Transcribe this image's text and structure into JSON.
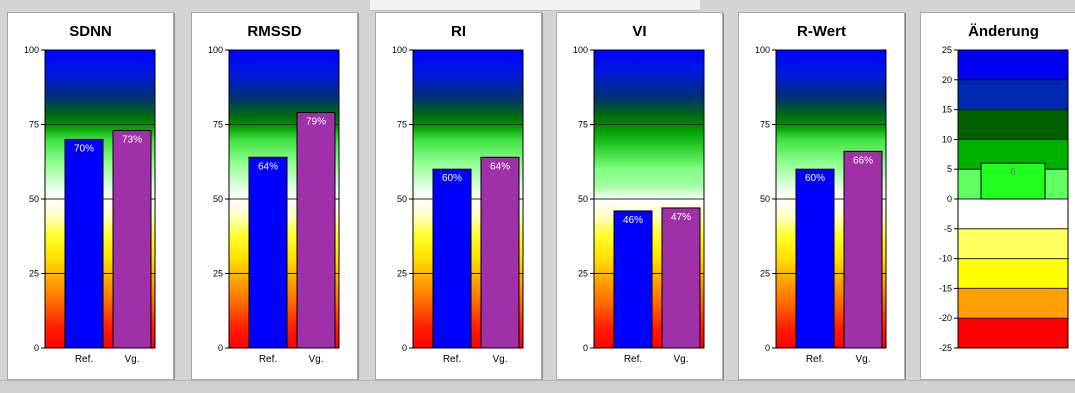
{
  "colors": {
    "ref_bar": "#0000ff",
    "vg_bar": "#a030a8",
    "change_bar": "#20ff20"
  },
  "chart_data": [
    {
      "type": "bar",
      "title": "SDNN",
      "categories": [
        "Ref.",
        "Vg."
      ],
      "values": [
        70,
        73
      ],
      "value_labels": [
        "70%",
        "73%"
      ],
      "ylim": [
        0,
        100
      ],
      "yticks": [
        0,
        25,
        50,
        75,
        100
      ],
      "background": "gradient"
    },
    {
      "type": "bar",
      "title": "RMSSD",
      "categories": [
        "Ref.",
        "Vg."
      ],
      "values": [
        64,
        79
      ],
      "value_labels": [
        "64%",
        "79%"
      ],
      "ylim": [
        0,
        100
      ],
      "yticks": [
        0,
        25,
        50,
        75,
        100
      ],
      "background": "gradient"
    },
    {
      "type": "bar",
      "title": "RI",
      "categories": [
        "Ref.",
        "Vg."
      ],
      "values": [
        60,
        64
      ],
      "value_labels": [
        "60%",
        "64%"
      ],
      "ylim": [
        0,
        100
      ],
      "yticks": [
        0,
        25,
        50,
        75,
        100
      ],
      "background": "gradient"
    },
    {
      "type": "bar",
      "title": "VI",
      "categories": [
        "Ref.",
        "Vg."
      ],
      "values": [
        46,
        47
      ],
      "value_labels": [
        "46%",
        "47%"
      ],
      "ylim": [
        0,
        100
      ],
      "yticks": [
        0,
        25,
        50,
        75,
        100
      ],
      "background": "gradient-vi"
    },
    {
      "type": "bar",
      "title": "R-Wert",
      "categories": [
        "Ref.",
        "Vg."
      ],
      "values": [
        60,
        66
      ],
      "value_labels": [
        "60%",
        "66%"
      ],
      "ylim": [
        0,
        100
      ],
      "yticks": [
        0,
        25,
        50,
        75,
        100
      ],
      "background": "gradient"
    },
    {
      "type": "bar",
      "title": "Änderung",
      "categories": [
        ""
      ],
      "values": [
        6
      ],
      "value_labels": [
        "6"
      ],
      "ylim": [
        -25,
        25
      ],
      "yticks": [
        -25,
        -20,
        -15,
        -10,
        -5,
        0,
        5,
        10,
        15,
        20,
        25
      ],
      "background": "bands"
    }
  ]
}
